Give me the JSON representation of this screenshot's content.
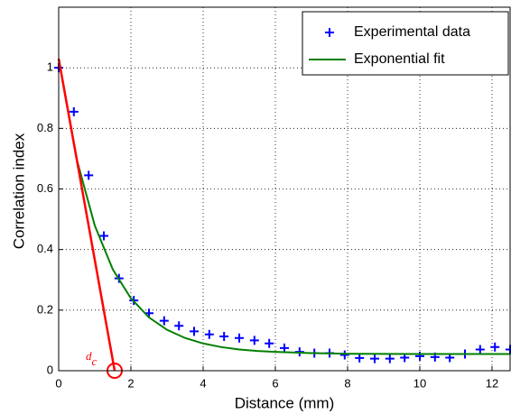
{
  "chart_data": {
    "type": "scatter",
    "xlabel": "Distance (mm)",
    "ylabel": "Correlation index",
    "xlim": [
      0,
      12.5
    ],
    "ylim": [
      0,
      1.2
    ],
    "xticks": [
      0,
      2,
      4,
      6,
      8,
      10,
      12
    ],
    "yticks": [
      0,
      0.2,
      0.4,
      0.6,
      0.8,
      1
    ],
    "grid": true,
    "legend": "top-right",
    "series": [
      {
        "name": "Experimental data",
        "color": "#0000ff",
        "marker": "plus",
        "x": [
          0,
          0.42,
          0.83,
          1.25,
          1.67,
          2.08,
          2.5,
          2.92,
          3.33,
          3.75,
          4.17,
          4.58,
          5.0,
          5.42,
          5.83,
          6.25,
          6.67,
          7.08,
          7.5,
          7.92,
          8.33,
          8.75,
          9.17,
          9.58,
          10.0,
          10.42,
          10.83,
          11.25,
          11.67,
          12.08,
          12.5
        ],
        "values": [
          1.0,
          0.855,
          0.645,
          0.445,
          0.305,
          0.232,
          0.19,
          0.165,
          0.148,
          0.13,
          0.12,
          0.113,
          0.108,
          0.1,
          0.09,
          0.075,
          0.062,
          0.058,
          0.058,
          0.052,
          0.042,
          0.04,
          0.04,
          0.043,
          0.048,
          0.045,
          0.043,
          0.055,
          0.07,
          0.078,
          0.07
        ]
      },
      {
        "name": "Exponential fit",
        "color": "#008000",
        "marker": "line",
        "x": [
          0,
          0.5,
          1,
          1.5,
          2,
          2.5,
          3,
          3.5,
          4,
          4.5,
          5,
          5.5,
          6,
          7,
          8,
          9,
          10,
          11,
          12.5
        ],
        "values": [
          1.03,
          0.698,
          0.479,
          0.334,
          0.239,
          0.176,
          0.135,
          0.108,
          0.09,
          0.078,
          0.07,
          0.065,
          0.062,
          0.058,
          0.056,
          0.0556,
          0.055,
          0.055,
          0.055
        ]
      }
    ],
    "tangent": {
      "color": "#ff0000",
      "x": [
        0,
        1.55
      ],
      "values": [
        1.03,
        0
      ]
    },
    "annotation": {
      "text": "d",
      "sub": "c"
    }
  }
}
